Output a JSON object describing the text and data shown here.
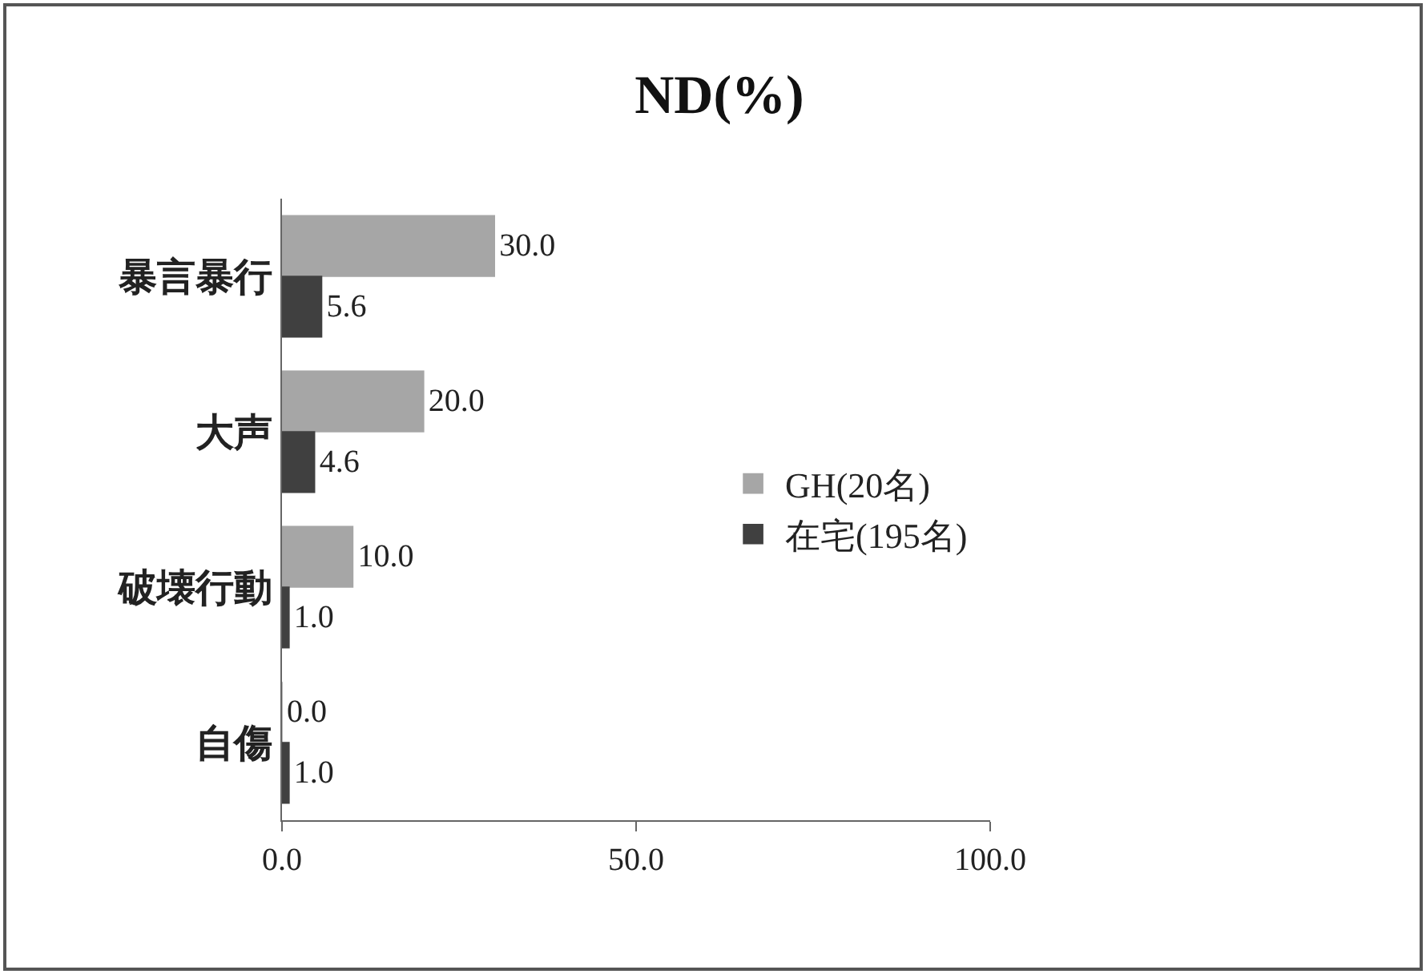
{
  "chart_data": {
    "type": "bar",
    "title": "ND(%)",
    "orientation": "horizontal",
    "categories": [
      "暴言暴行",
      "大声",
      "破壊行動",
      "自傷"
    ],
    "series": [
      {
        "name": "GH(20名)",
        "color": "#a6a6a6",
        "values": [
          30,
          20,
          10,
          0
        ],
        "value_labels": [
          "30.0",
          "20.0",
          "10.0",
          "0.0"
        ]
      },
      {
        "name": "在宅(195名)",
        "color": "#404040",
        "values": [
          5.6,
          4.6,
          1.0,
          1.0
        ],
        "value_labels": [
          "5.6",
          "4.6",
          "1.0",
          "1.0"
        ]
      }
    ],
    "xlim": [
      0,
      100
    ],
    "xticks": [
      {
        "value": 0,
        "label": "0.0"
      },
      {
        "value": 50,
        "label": "50.0"
      },
      {
        "value": 100,
        "label": "100.0"
      }
    ],
    "grid": false,
    "legend": "right"
  }
}
